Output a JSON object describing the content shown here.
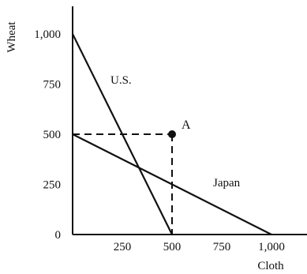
{
  "chart_data": {
    "type": "line",
    "title": "",
    "xlabel": "Cloth",
    "ylabel": "Wheat",
    "xlim": [
      0,
      1000
    ],
    "ylim": [
      0,
      1000
    ],
    "x_ticks": [
      250,
      500,
      750,
      1000
    ],
    "x_tick_labels": [
      "250",
      "500",
      "750",
      "1,000"
    ],
    "y_ticks": [
      0,
      250,
      500,
      750,
      1000
    ],
    "y_tick_labels": [
      "0",
      "250",
      "500",
      "750",
      "1,000"
    ],
    "grid": false,
    "legend": "none",
    "series": [
      {
        "name": "U.S.",
        "x": [
          0,
          500
        ],
        "y": [
          1000,
          0
        ],
        "color": "#111111"
      },
      {
        "name": "Japan",
        "x": [
          0,
          1000
        ],
        "y": [
          500,
          0
        ],
        "color": "#111111"
      }
    ],
    "point": {
      "label": "A",
      "x": 500,
      "y": 500
    },
    "guides": {
      "style": "dashed",
      "x": 500,
      "y": 500
    }
  }
}
